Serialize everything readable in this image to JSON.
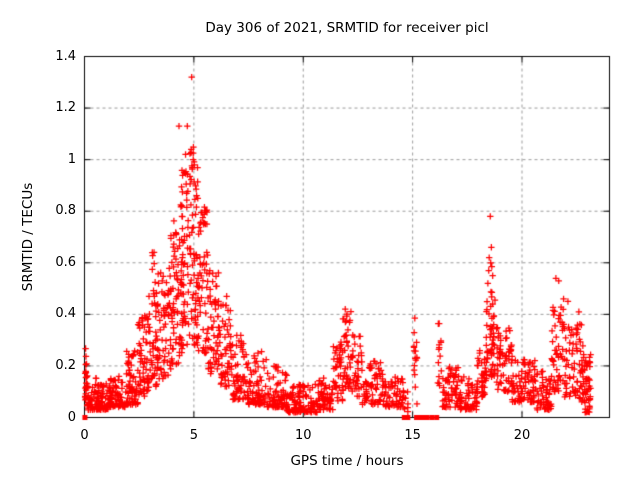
{
  "window": {
    "background": "#ffffff",
    "foreground": "#000000"
  },
  "chart_data": {
    "type": "scatter",
    "title": "Day 306 of 2021, SRMTID for receiver picl",
    "xlabel": "GPS time / hours",
    "ylabel": "SRMTID / TECUs",
    "xlim": [
      0,
      24
    ],
    "ylim": [
      0,
      1.4
    ],
    "xticks": {
      "values": [
        0,
        5,
        10,
        15,
        20
      ],
      "labels": [
        "0",
        "5",
        "10",
        "15",
        "20"
      ]
    },
    "yticks": {
      "values": [
        0,
        0.2,
        0.4,
        0.6,
        0.8,
        1.0,
        1.2,
        1.4
      ],
      "labels": [
        "0",
        "0.2",
        "0.4",
        "0.6",
        "0.8",
        "1",
        "1.2",
        "1.4"
      ]
    },
    "grid": {
      "enabled": true,
      "dashed": true,
      "color": "#9b9b9b"
    },
    "border_color": "#000000",
    "marker": {
      "shape": "plus",
      "color": "#ff0000",
      "size": 7
    },
    "seed": 20211106,
    "clusters_format": "[xStart,xEnd,count,yMin,yMax,skew] - envelope bands of the dense scatter read from the plot; points regenerated deterministically from seed",
    "clusters": [
      [
        0.02,
        0.12,
        20,
        0.05,
        0.27,
        1.1
      ],
      [
        0.12,
        0.55,
        45,
        0.03,
        0.17,
        1.9
      ],
      [
        0.55,
        1.15,
        70,
        0.03,
        0.14,
        1.9
      ],
      [
        1.15,
        1.85,
        75,
        0.04,
        0.17,
        1.9
      ],
      [
        1.85,
        2.45,
        65,
        0.05,
        0.26,
        1.7
      ],
      [
        2.45,
        2.95,
        60,
        0.08,
        0.4,
        1.5
      ],
      [
        2.95,
        3.35,
        45,
        0.12,
        0.5,
        1.4
      ],
      [
        3.08,
        3.25,
        9,
        0.4,
        0.64,
        1.0
      ],
      [
        3.35,
        3.95,
        60,
        0.15,
        0.58,
        1.35
      ],
      [
        3.95,
        4.4,
        60,
        0.2,
        0.78,
        1.25
      ],
      [
        4.4,
        4.8,
        65,
        0.25,
        0.97,
        1.2
      ],
      [
        4.8,
        5.2,
        70,
        0.28,
        1.05,
        1.2
      ],
      [
        5.2,
        5.65,
        60,
        0.25,
        0.82,
        1.3
      ],
      [
        5.65,
        6.15,
        55,
        0.17,
        0.58,
        1.45
      ],
      [
        6.15,
        6.75,
        55,
        0.12,
        0.45,
        1.6
      ],
      [
        6.75,
        7.45,
        60,
        0.07,
        0.32,
        1.75
      ],
      [
        7.45,
        8.35,
        75,
        0.05,
        0.26,
        1.9
      ],
      [
        8.35,
        9.25,
        75,
        0.04,
        0.2,
        2.0
      ],
      [
        9.25,
        10.65,
        115,
        0.02,
        0.13,
        1.9
      ],
      [
        10.65,
        11.35,
        55,
        0.03,
        0.16,
        1.8
      ],
      [
        11.35,
        11.8,
        38,
        0.06,
        0.3,
        1.5
      ],
      [
        11.8,
        12.2,
        42,
        0.1,
        0.42,
        1.25
      ],
      [
        12.2,
        12.7,
        38,
        0.08,
        0.32,
        1.5
      ],
      [
        12.7,
        13.7,
        70,
        0.05,
        0.22,
        1.8
      ],
      [
        13.7,
        14.6,
        60,
        0.04,
        0.16,
        1.8
      ],
      [
        14.6,
        14.8,
        7,
        0.02,
        0.12,
        1.4
      ],
      [
        15.05,
        15.2,
        15,
        0.05,
        0.36,
        1.0
      ],
      [
        16.15,
        16.32,
        14,
        0.08,
        0.37,
        1.0
      ],
      [
        16.35,
        17.15,
        60,
        0.04,
        0.2,
        1.7
      ],
      [
        17.15,
        17.95,
        60,
        0.03,
        0.16,
        1.8
      ],
      [
        17.95,
        18.35,
        38,
        0.08,
        0.26,
        1.5
      ],
      [
        18.35,
        18.8,
        55,
        0.15,
        0.5,
        1.2
      ],
      [
        18.8,
        19.55,
        65,
        0.1,
        0.35,
        1.5
      ],
      [
        19.55,
        20.65,
        85,
        0.06,
        0.23,
        1.7
      ],
      [
        20.65,
        21.35,
        55,
        0.03,
        0.18,
        1.7
      ],
      [
        21.35,
        21.95,
        52,
        0.1,
        0.44,
        1.3
      ],
      [
        21.95,
        22.55,
        50,
        0.08,
        0.36,
        1.4
      ],
      [
        22.55,
        22.85,
        30,
        0.06,
        0.42,
        1.4
      ],
      [
        22.85,
        23.15,
        45,
        0.02,
        0.26,
        1.6
      ]
    ],
    "outlier_points": [
      [
        4.9,
        1.32
      ],
      [
        4.32,
        1.13
      ],
      [
        4.7,
        1.13
      ],
      [
        4.62,
        1.02
      ],
      [
        4.88,
        1.04
      ],
      [
        4.97,
        1.0
      ],
      [
        5.02,
        0.98
      ],
      [
        4.55,
        0.95
      ],
      [
        3.18,
        0.64
      ],
      [
        2.95,
        0.47
      ],
      [
        6.5,
        0.47
      ],
      [
        11.92,
        0.42
      ],
      [
        15.1,
        0.385
      ],
      [
        18.55,
        0.78
      ],
      [
        18.6,
        0.66
      ],
      [
        18.5,
        0.62
      ],
      [
        18.57,
        0.6
      ],
      [
        18.62,
        0.585
      ],
      [
        18.48,
        0.57
      ],
      [
        18.66,
        0.55
      ],
      [
        18.44,
        0.52
      ],
      [
        21.55,
        0.54
      ],
      [
        21.68,
        0.53
      ],
      [
        21.9,
        0.46
      ],
      [
        22.1,
        0.45
      ],
      [
        22.6,
        0.41
      ]
    ],
    "zero_points_x": [
      0.02,
      14.62,
      14.78,
      15.18,
      15.26,
      15.34,
      15.42,
      15.5,
      15.58,
      15.66,
      15.88,
      16.1
    ]
  }
}
